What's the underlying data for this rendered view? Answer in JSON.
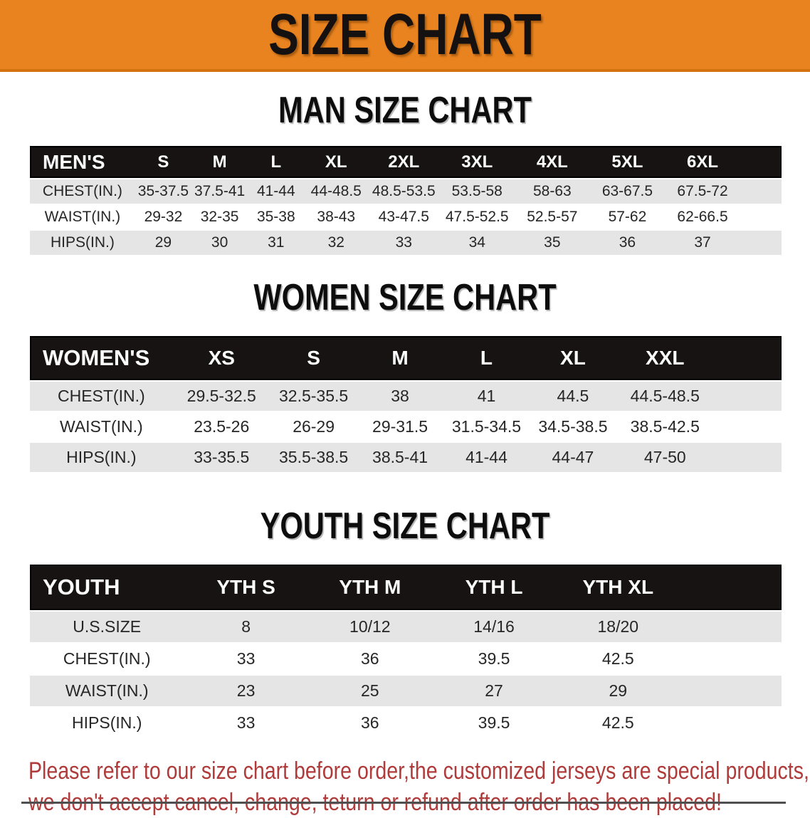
{
  "banner": {
    "title": "SIZE CHART"
  },
  "colors": {
    "banner_bg": "#E8831F",
    "banner_edge": "#D2730F",
    "header_bar_bg": "#171313",
    "row_gray": "#E5E5E5",
    "disclaimer_red": "#AF3B3B"
  },
  "sections": [
    {
      "heading": "MAN SIZE CHART",
      "header_label": "MEN'S",
      "columns": [
        "S",
        "M",
        "L",
        "XL",
        "2XL",
        "3XL",
        "4XL",
        "5XL",
        "6XL"
      ],
      "rows": [
        {
          "label": "CHEST(IN.)",
          "values": [
            "35-37.5",
            "37.5-41",
            "41-44",
            "44-48.5",
            "48.5-53.5",
            "53.5-58",
            "58-63",
            "63-67.5",
            "67.5-72"
          ]
        },
        {
          "label": "WAIST(IN.)",
          "values": [
            "29-32",
            "32-35",
            "35-38",
            "38-43",
            "43-47.5",
            "47.5-52.5",
            "52.5-57",
            "57-62",
            "62-66.5"
          ]
        },
        {
          "label": "HIPS(IN.)",
          "values": [
            "29",
            "30",
            "31",
            "32",
            "33",
            "34",
            "35",
            "36",
            "37"
          ]
        }
      ]
    },
    {
      "heading": "WOMEN SIZE CHART",
      "header_label": "WOMEN'S",
      "columns": [
        "XS",
        "S",
        "M",
        "L",
        "XL",
        "XXL"
      ],
      "rows": [
        {
          "label": "CHEST(IN.)",
          "values": [
            "29.5-32.5",
            "32.5-35.5",
            "38",
            "41",
            "44.5",
            "44.5-48.5"
          ]
        },
        {
          "label": "WAIST(IN.)",
          "values": [
            "23.5-26",
            "26-29",
            "29-31.5",
            "31.5-34.5",
            "34.5-38.5",
            "38.5-42.5"
          ]
        },
        {
          "label": "HIPS(IN.)",
          "values": [
            "33-35.5",
            "35.5-38.5",
            "38.5-41",
            "41-44",
            "44-47",
            "47-50"
          ]
        }
      ]
    },
    {
      "heading": "YOUTH SIZE CHART",
      "header_label": "YOUTH",
      "columns": [
        "YTH S",
        "YTH M",
        "YTH L",
        "YTH XL"
      ],
      "rows": [
        {
          "label": "U.S.SIZE",
          "values": [
            "8",
            "10/12",
            "14/16",
            "18/20"
          ]
        },
        {
          "label": "CHEST(IN.)",
          "values": [
            "33",
            "36",
            "39.5",
            "42.5"
          ]
        },
        {
          "label": "WAIST(IN.)",
          "values": [
            "23",
            "25",
            "27",
            "29"
          ]
        },
        {
          "label": "HIPS(IN.)",
          "values": [
            "33",
            "36",
            "39.5",
            "42.5"
          ]
        }
      ]
    }
  ],
  "disclaimer": {
    "line1": "Please refer to our size chart before order,the customized jerseys are special products,",
    "line2": "we don't accept cancel, change, teturn or refund after order has been placed!"
  }
}
